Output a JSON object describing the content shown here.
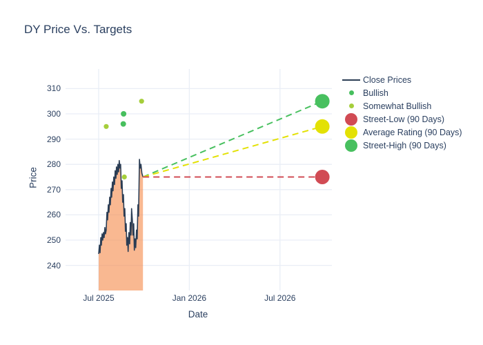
{
  "figure": {
    "title": "DY Price Vs. Targets",
    "title_color": "#2a3f5f",
    "background": "#ffffff",
    "gridline_color": "#e9eef6"
  },
  "chart_data": {
    "type": "line",
    "title": "DY Price Vs. Targets",
    "xlabel": "Date",
    "ylabel": "Price",
    "x_ticks": [
      {
        "m": 0,
        "label": "Jul 2025"
      },
      {
        "m": 6,
        "label": "Jan 2026"
      },
      {
        "m": 12,
        "label": "Jul 2026"
      }
    ],
    "y_ticks": [
      240,
      250,
      260,
      270,
      280,
      290,
      300,
      310
    ],
    "y_range_note": "price axis approx 230-318 visible",
    "series": {
      "close_prices": {
        "name": "Close Prices",
        "line_color": "#2b3d54",
        "fill_color": "rgba(246,140,77,0.62)",
        "points": [
          [
            0.0,
            244.5
          ],
          [
            0.05,
            248.0
          ],
          [
            0.09,
            245.0
          ],
          [
            0.14,
            251.0
          ],
          [
            0.18,
            248.0
          ],
          [
            0.23,
            252.5
          ],
          [
            0.27,
            250.0
          ],
          [
            0.32,
            253.0
          ],
          [
            0.36,
            251.0
          ],
          [
            0.41,
            255.0
          ],
          [
            0.45,
            252.5
          ],
          [
            0.5,
            254.0
          ],
          [
            0.55,
            261.0
          ],
          [
            0.59,
            258.0
          ],
          [
            0.64,
            264.0
          ],
          [
            0.68,
            261.0
          ],
          [
            0.73,
            267.0
          ],
          [
            0.77,
            264.0
          ],
          [
            0.82,
            270.5
          ],
          [
            0.86,
            267.0
          ],
          [
            0.91,
            273.0
          ],
          [
            0.95,
            269.5
          ],
          [
            1.0,
            275.0
          ],
          [
            1.05,
            272.0
          ],
          [
            1.09,
            277.5
          ],
          [
            1.14,
            274.5
          ],
          [
            1.18,
            279.0
          ],
          [
            1.23,
            276.0
          ],
          [
            1.27,
            280.0
          ],
          [
            1.32,
            277.0
          ],
          [
            1.36,
            281.5
          ],
          [
            1.41,
            278.5
          ],
          [
            1.45,
            280.0
          ],
          [
            1.5,
            270.5
          ],
          [
            1.55,
            273.5
          ],
          [
            1.59,
            265.0
          ],
          [
            1.64,
            268.0
          ],
          [
            1.68,
            259.5
          ],
          [
            1.73,
            262.5
          ],
          [
            1.77,
            253.5
          ],
          [
            1.82,
            256.5
          ],
          [
            1.86,
            248.0
          ],
          [
            1.91,
            251.0
          ],
          [
            1.95,
            245.5
          ],
          [
            2.0,
            253.0
          ],
          [
            2.05,
            248.5
          ],
          [
            2.09,
            257.0
          ],
          [
            2.14,
            252.0
          ],
          [
            2.18,
            262.5
          ],
          [
            2.23,
            258.0
          ],
          [
            2.27,
            252.0
          ],
          [
            2.32,
            256.5
          ],
          [
            2.36,
            246.0
          ],
          [
            2.41,
            250.5
          ],
          [
            2.45,
            247.0
          ],
          [
            2.5,
            254.0
          ],
          [
            2.55,
            250.5
          ],
          [
            2.6,
            264.0
          ],
          [
            2.64,
            259.5
          ],
          [
            2.7,
            282.0
          ],
          [
            2.75,
            278.5
          ],
          [
            2.8,
            280.0
          ],
          [
            2.86,
            276.5
          ],
          [
            2.93,
            275.0
          ]
        ]
      },
      "bullish": {
        "name": "Bullish",
        "color": "#47bf5e",
        "points": [
          [
            1.63,
            296
          ],
          [
            1.65,
            300
          ]
        ]
      },
      "somewhat_bullish": {
        "name": "Somewhat Bullish",
        "color": "#a5ce3b",
        "points": [
          [
            0.5,
            295
          ],
          [
            1.7,
            275
          ],
          [
            2.84,
            305
          ]
        ]
      },
      "targets": {
        "start": [
          2.93,
          275
        ],
        "target_x": 14.8,
        "items": [
          {
            "key": "street_high",
            "name": "Street-High (90 Days)",
            "color": "#48c05f",
            "value": 305
          },
          {
            "key": "average",
            "name": "Average Rating (90 Days)",
            "color": "#e3e104",
            "value": 295
          },
          {
            "key": "street_low",
            "name": "Street-Low (90 Days)",
            "color": "#d14b54",
            "value": 275
          }
        ]
      }
    },
    "legend_position": "right",
    "grid": true,
    "legend": [
      {
        "label": "Close Prices",
        "swatch": "line",
        "color": "#2b3d54",
        "size": 0
      },
      {
        "label": "Bullish",
        "swatch": "dot",
        "color": "#47bf5e",
        "size": 7
      },
      {
        "label": "Somewhat Bullish",
        "swatch": "dot",
        "color": "#a5ce3b",
        "size": 7
      },
      {
        "label": "Street-Low (90 Days)",
        "swatch": "dot",
        "color": "#d14b54",
        "size": 18
      },
      {
        "label": "Average Rating (90 Days)",
        "swatch": "dot",
        "color": "#e3e104",
        "size": 18
      },
      {
        "label": "Street-High (90 Days)",
        "swatch": "dot",
        "color": "#48c05f",
        "size": 18
      }
    ]
  }
}
